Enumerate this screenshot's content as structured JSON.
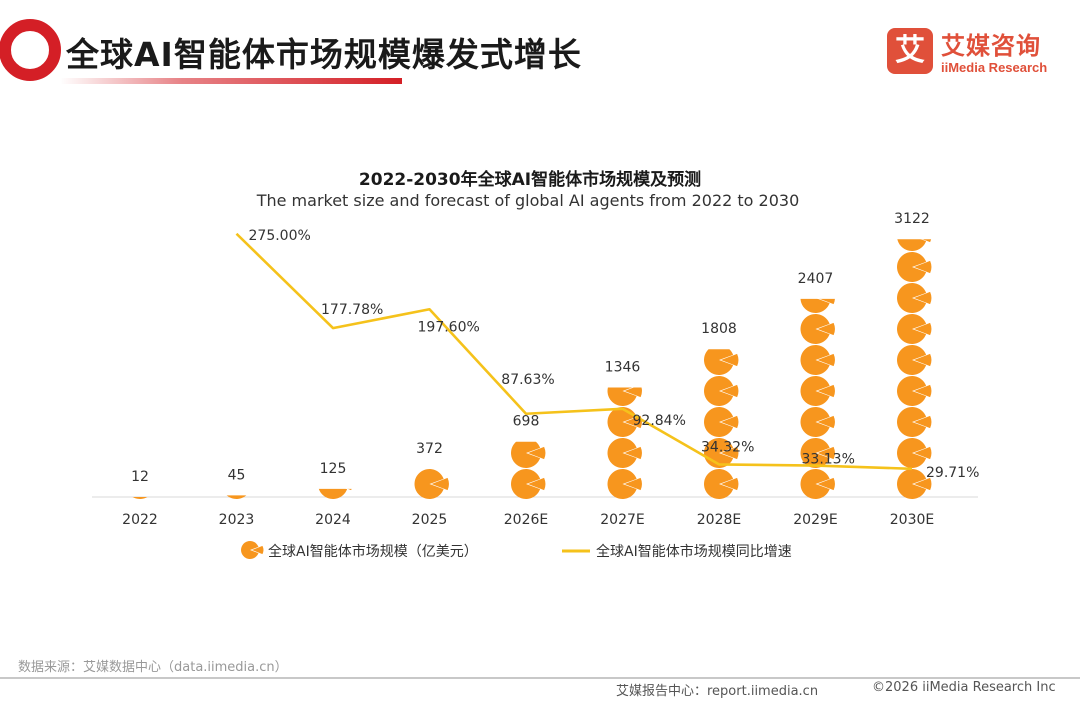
{
  "header": {
    "title": "全球AI智能体市场规模爆发式增长",
    "accent_color": "#d41f26"
  },
  "brand": {
    "icon_glyph": "艾",
    "name_cn": "艾媒咨询",
    "name_en": "iiMedia Research",
    "color": "#e0503a"
  },
  "chart_data": {
    "type": "bar",
    "title": "2022-2030年全球AI智能体市场规模及预测",
    "subtitle": "The market size and forecast of global AI agents from 2022 to 2030",
    "categories": [
      "2022",
      "2023",
      "2024",
      "2025",
      "2026E",
      "2027E",
      "2028E",
      "2029E",
      "2030E"
    ],
    "series": [
      {
        "name": "全球AI智能体市场规模（亿美元）",
        "type": "pictogram-bar",
        "icon": "pie-chart-icon",
        "color": "#f7961e",
        "values": [
          12,
          45,
          125,
          372,
          698,
          1346,
          1808,
          2407,
          3122
        ],
        "labels": [
          "12",
          "45",
          "125",
          "372",
          "698",
          "1346",
          "1808",
          "2407",
          "3122"
        ]
      },
      {
        "name": "全球AI智能体市场规模同比增速",
        "type": "line",
        "color": "#f5c21b",
        "values": [
          null,
          275.0,
          177.78,
          197.6,
          87.63,
          92.84,
          34.32,
          33.13,
          29.71
        ],
        "labels": [
          "",
          "275.00%",
          "177.78%",
          "197.60%",
          "87.63%",
          "92.84%",
          "34.32%",
          "33.13%",
          "29.71%"
        ]
      }
    ],
    "legend_position": "bottom",
    "grid": false
  },
  "footer": {
    "source": "数据来源：艾媒数据中心（data.iimedia.cn）",
    "report_site": "艾媒报告中心：report.iimedia.cn",
    "copyright": "©2026  iiMedia Research  Inc"
  }
}
